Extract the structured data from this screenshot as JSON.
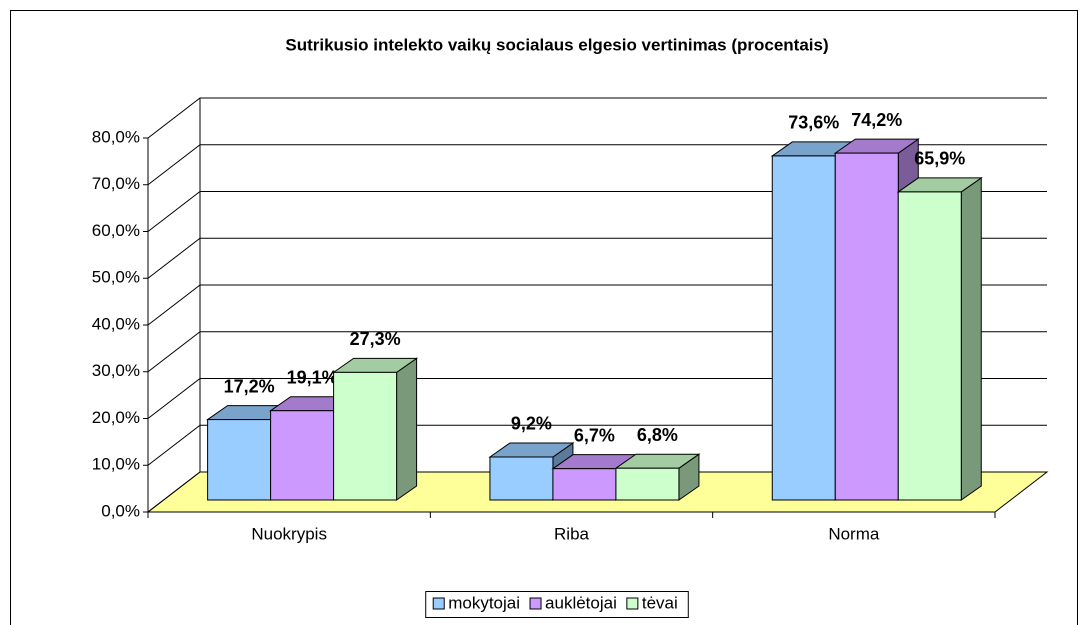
{
  "chart_data": {
    "type": "bar3d",
    "title": "Sutrikusio intelekto vaikų socialaus elgesio vertinimas (procentais)",
    "categories": [
      "Nuokrypis",
      "Riba",
      "Norma"
    ],
    "series": [
      {
        "name": "mokytojai",
        "color": "#99ccff",
        "values": [
          17.2,
          9.2,
          73.6
        ],
        "value_labels": [
          "17,2%",
          "9,2%",
          "73,6%"
        ]
      },
      {
        "name": "auklėtojai",
        "color": "#cc99ff",
        "values": [
          19.1,
          6.7,
          74.2
        ],
        "value_labels": [
          "19,1%",
          "6,7%",
          "74,2%"
        ]
      },
      {
        "name": "tėvai",
        "color": "#ccffcc",
        "values": [
          27.3,
          6.8,
          65.9
        ],
        "value_labels": [
          "27,3%",
          "6,8%",
          "65,9%"
        ]
      }
    ],
    "ylim": [
      0,
      80
    ],
    "yticks": [
      {
        "value": 0,
        "label": "0,0%"
      },
      {
        "value": 10,
        "label": "10,0%"
      },
      {
        "value": 20,
        "label": "20,0%"
      },
      {
        "value": 30,
        "label": "30,0%"
      },
      {
        "value": 40,
        "label": "40,0%"
      },
      {
        "value": 50,
        "label": "50,0%"
      },
      {
        "value": 60,
        "label": "60,0%"
      },
      {
        "value": 70,
        "label": "70,0%"
      },
      {
        "value": 80,
        "label": "80,0%"
      }
    ],
    "floor_color": "#ffff99",
    "grid": true,
    "legend": "bottom"
  }
}
